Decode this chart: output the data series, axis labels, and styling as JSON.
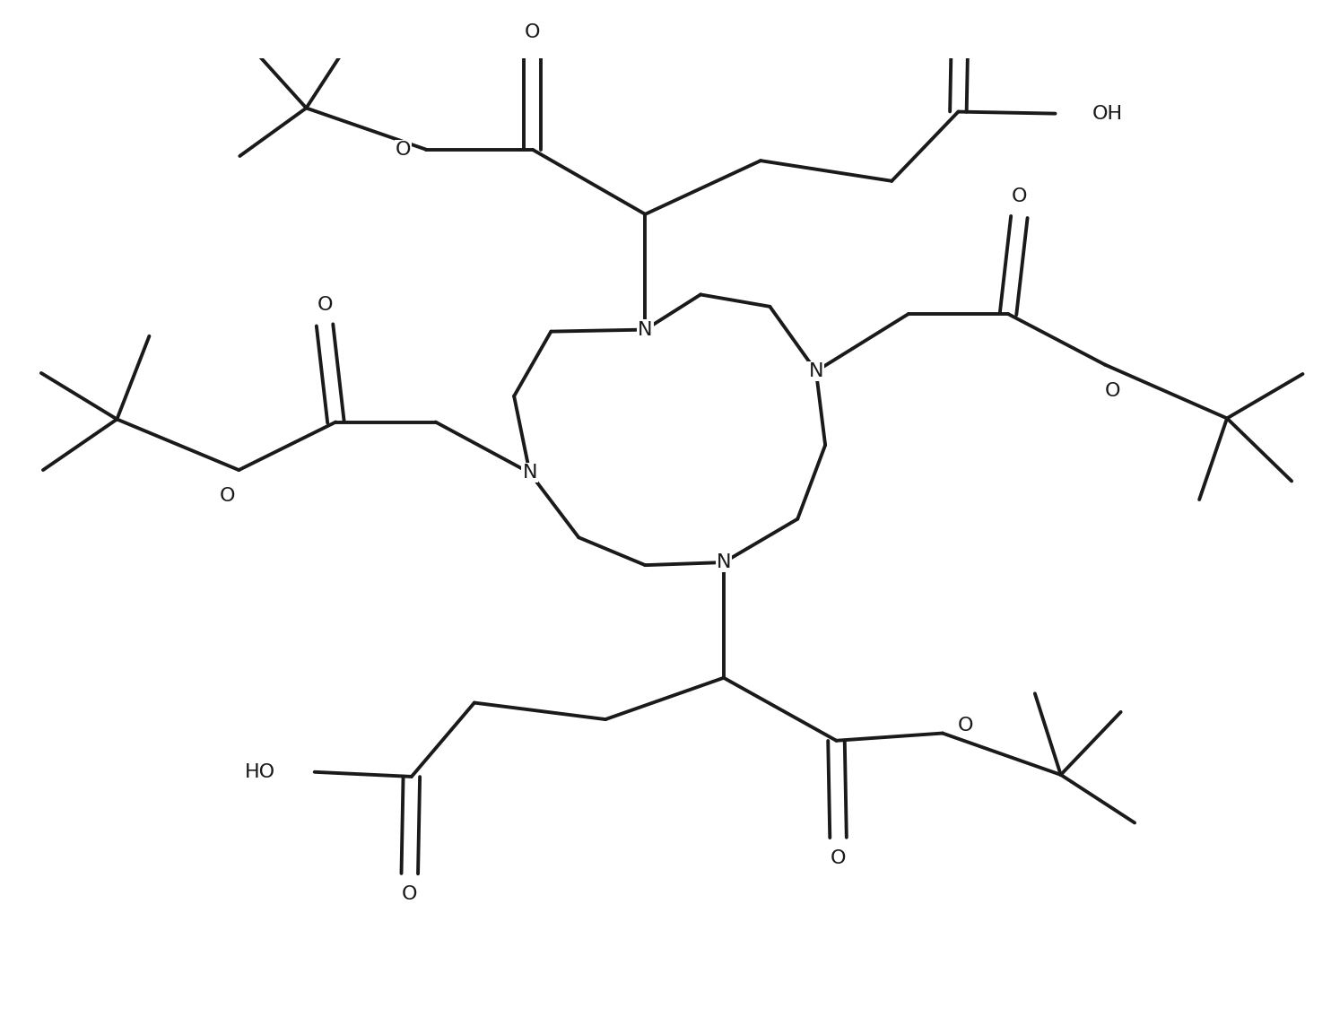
{
  "bg_color": "#ffffff",
  "line_color": "#1a1a1a",
  "lw": 2.8,
  "fs": 15,
  "figsize": [
    14.84,
    11.44
  ],
  "dpi": 100,
  "xlim": [
    0,
    14.84
  ],
  "ylim": [
    0,
    11.44
  ]
}
